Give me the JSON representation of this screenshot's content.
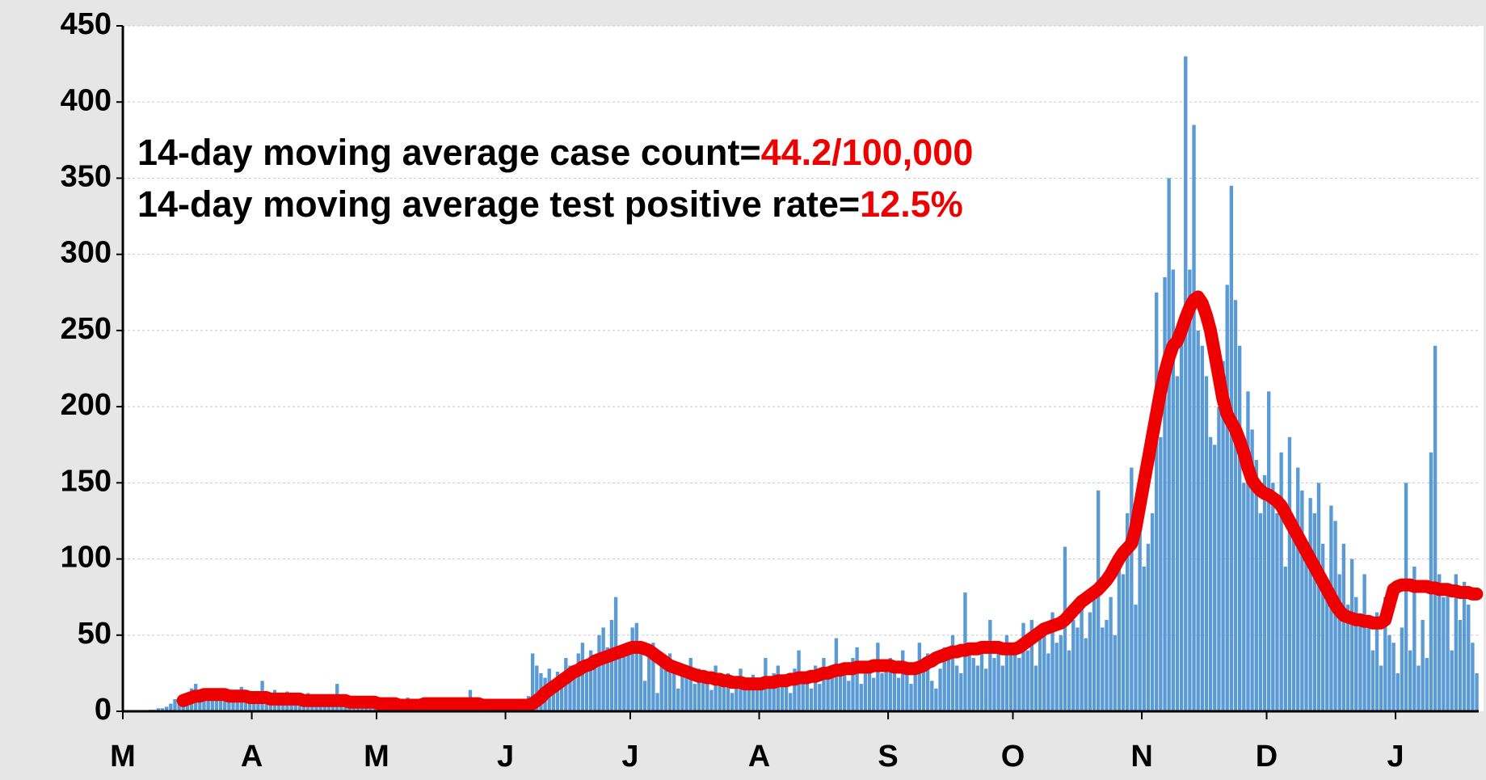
{
  "chart_data": {
    "type": "bar",
    "categories": [
      "M",
      null,
      null,
      null,
      null,
      null,
      null,
      null,
      null,
      null,
      null,
      null,
      null,
      null,
      null,
      null,
      null,
      null,
      null,
      null,
      null,
      null,
      null,
      null,
      null,
      null,
      null,
      null,
      null,
      null,
      null,
      "A",
      null,
      null,
      null,
      null,
      null,
      null,
      null,
      null,
      null,
      null,
      null,
      null,
      null,
      null,
      null,
      null,
      null,
      null,
      null,
      null,
      null,
      null,
      null,
      null,
      null,
      null,
      null,
      null,
      null,
      "M",
      null,
      null,
      null,
      null,
      null,
      null,
      null,
      null,
      null,
      null,
      null,
      null,
      null,
      null,
      null,
      null,
      null,
      null,
      null,
      null,
      null,
      null,
      null,
      null,
      null,
      null,
      null,
      null,
      null,
      null,
      "J",
      null,
      null,
      null,
      null,
      null,
      null,
      null,
      null,
      null,
      null,
      null,
      null,
      null,
      null,
      null,
      null,
      null,
      null,
      null,
      null,
      null,
      null,
      null,
      null,
      null,
      null,
      null,
      null,
      null,
      "J",
      null,
      null,
      null,
      null,
      null,
      null,
      null,
      null,
      null,
      null,
      null,
      null,
      null,
      null,
      null,
      null,
      null,
      null,
      null,
      null,
      null,
      null,
      null,
      null,
      null,
      null,
      null,
      null,
      null,
      null,
      "A",
      null,
      null,
      null,
      null,
      null,
      null,
      null,
      null,
      null,
      null,
      null,
      null,
      null,
      null,
      null,
      null,
      null,
      null,
      null,
      null,
      null,
      null,
      null,
      null,
      null,
      null,
      null,
      null,
      null,
      null,
      "S",
      null,
      null,
      null,
      null,
      null,
      null,
      null,
      null,
      null,
      null,
      null,
      null,
      null,
      null,
      null,
      null,
      null,
      null,
      null,
      null,
      null,
      null,
      null,
      null,
      null,
      null,
      null,
      null,
      null,
      "O",
      null,
      null,
      null,
      null,
      null,
      null,
      null,
      null,
      null,
      null,
      null,
      null,
      null,
      null,
      null,
      null,
      null,
      null,
      null,
      null,
      null,
      null,
      null,
      null,
      null,
      null,
      null,
      null,
      null,
      null,
      "N",
      null,
      null,
      null,
      null,
      null,
      null,
      null,
      null,
      null,
      null,
      null,
      null,
      null,
      null,
      null,
      null,
      null,
      null,
      null,
      null,
      null,
      null,
      null,
      null,
      null,
      null,
      null,
      null,
      null,
      "D",
      null,
      null,
      null,
      null,
      null,
      null,
      null,
      null,
      null,
      null,
      null,
      null,
      null,
      null,
      null,
      null,
      null,
      null,
      null,
      null,
      null,
      null,
      null,
      null,
      null,
      null,
      null,
      null,
      null,
      null,
      "J",
      null,
      null,
      null,
      null,
      null,
      null,
      null,
      null,
      null,
      null,
      null,
      null,
      null,
      null,
      null,
      null,
      null,
      null,
      null
    ],
    "series": [
      {
        "type": "bar",
        "color": "#5b9bd5",
        "values": [
          0,
          0,
          0,
          0,
          0,
          0,
          1,
          1,
          2,
          2,
          3,
          5,
          8,
          9,
          5,
          10,
          15,
          18,
          12,
          8,
          10,
          14,
          9,
          11,
          13,
          8,
          12,
          10,
          16,
          9,
          11,
          12,
          8,
          20,
          10,
          9,
          14,
          7,
          11,
          13,
          8,
          10,
          6,
          9,
          12,
          7,
          10,
          8,
          11,
          6,
          9,
          18,
          7,
          8,
          10,
          5,
          9,
          7,
          8,
          6,
          9,
          5,
          7,
          4,
          6,
          8,
          3,
          5,
          9,
          4,
          6,
          7,
          5,
          3,
          8,
          6,
          4,
          7,
          5,
          9,
          6,
          4,
          7,
          14,
          5,
          8,
          6,
          4,
          7,
          5,
          6,
          8,
          5,
          3,
          6,
          4,
          8,
          10,
          38,
          30,
          25,
          22,
          28,
          20,
          26,
          18,
          35,
          30,
          28,
          38,
          45,
          32,
          40,
          36,
          50,
          55,
          42,
          60,
          75,
          40,
          38,
          45,
          55,
          58,
          40,
          20,
          35,
          45,
          12,
          30,
          28,
          38,
          25,
          15,
          30,
          22,
          35,
          18,
          28,
          20,
          25,
          14,
          30,
          22,
          18,
          25,
          12,
          20,
          28,
          16,
          22,
          24,
          18,
          20,
          35,
          15,
          25,
          30,
          18,
          22,
          12,
          28,
          40,
          20,
          25,
          15,
          30,
          18,
          35,
          22,
          28,
          48,
          25,
          30,
          20,
          35,
          42,
          18,
          28,
          30,
          22,
          45,
          25,
          30,
          35,
          28,
          22,
          40,
          30,
          18,
          25,
          45,
          30,
          38,
          20,
          15,
          28,
          42,
          35,
          50,
          30,
          25,
          78,
          40,
          35,
          30,
          45,
          28,
          60,
          35,
          42,
          30,
          50,
          38,
          45,
          35,
          58,
          40,
          60,
          30,
          48,
          55,
          38,
          65,
          45,
          50,
          108,
          40,
          60,
          55,
          70,
          48,
          65,
          80,
          145,
          55,
          60,
          75,
          50,
          100,
          90,
          130,
          160,
          70,
          120,
          95,
          110,
          130,
          275,
          180,
          285,
          350,
          290,
          220,
          245,
          430,
          290,
          385,
          250,
          240,
          220,
          180,
          175,
          200,
          230,
          280,
          345,
          270,
          240,
          150,
          210,
          185,
          165,
          130,
          155,
          210,
          150,
          130,
          170,
          95,
          180,
          120,
          160,
          145,
          100,
          140,
          130,
          150,
          110,
          80,
          135,
          125,
          90,
          110,
          70,
          100,
          75,
          60,
          90,
          55,
          40,
          65,
          30,
          75,
          50,
          45,
          25,
          55,
          150,
          40,
          95,
          30,
          60,
          35,
          170,
          240,
          90,
          75,
          80,
          40,
          90,
          60,
          85,
          70,
          45,
          25
        ]
      },
      {
        "type": "line",
        "color": "#ee0000",
        "values": [
          null,
          null,
          null,
          null,
          null,
          null,
          null,
          null,
          null,
          null,
          null,
          null,
          null,
          null,
          7,
          8,
          9,
          10,
          10,
          11,
          11,
          11,
          11,
          11,
          11,
          10,
          10,
          10,
          10,
          10,
          9,
          9,
          9,
          9,
          9,
          8,
          8,
          8,
          8,
          8,
          8,
          8,
          8,
          7,
          7,
          7,
          7,
          7,
          7,
          7,
          7,
          7,
          7,
          7,
          6,
          6,
          6,
          6,
          6,
          6,
          6,
          5,
          5,
          5,
          5,
          5,
          4,
          4,
          4,
          4,
          4,
          4,
          5,
          5,
          5,
          5,
          5,
          5,
          5,
          5,
          5,
          5,
          5,
          5,
          5,
          5,
          4,
          4,
          4,
          4,
          4,
          4,
          4,
          4,
          4,
          4,
          4,
          4,
          5,
          7,
          9,
          12,
          14,
          16,
          18,
          20,
          22,
          24,
          26,
          27,
          29,
          30,
          31,
          33,
          34,
          35,
          36,
          37,
          38,
          39,
          40,
          41,
          42,
          42,
          42,
          41,
          40,
          38,
          36,
          34,
          32,
          30,
          29,
          28,
          27,
          26,
          25,
          24,
          23,
          23,
          22,
          22,
          21,
          21,
          20,
          20,
          19,
          19,
          19,
          18,
          18,
          18,
          18,
          18,
          19,
          19,
          19,
          20,
          20,
          20,
          21,
          21,
          22,
          22,
          22,
          23,
          23,
          24,
          25,
          25,
          26,
          27,
          27,
          28,
          28,
          28,
          29,
          29,
          29,
          29,
          30,
          30,
          30,
          30,
          30,
          29,
          29,
          29,
          28,
          28,
          28,
          29,
          30,
          32,
          33,
          35,
          36,
          37,
          38,
          39,
          39,
          40,
          40,
          41,
          41,
          41,
          42,
          42,
          42,
          42,
          42,
          41,
          41,
          41,
          41,
          42,
          44,
          46,
          48,
          50,
          52,
          54,
          55,
          56,
          57,
          58,
          60,
          63,
          66,
          69,
          72,
          74,
          76,
          78,
          80,
          83,
          86,
          90,
          95,
          100,
          104,
          107,
          110,
          120,
          135,
          150,
          165,
          180,
          195,
          210,
          222,
          232,
          240,
          243,
          250,
          258,
          265,
          270,
          272,
          268,
          260,
          250,
          235,
          220,
          205,
          195,
          190,
          185,
          178,
          170,
          160,
          152,
          148,
          145,
          143,
          142,
          140,
          138,
          135,
          130,
          125,
          120,
          115,
          110,
          105,
          100,
          95,
          90,
          85,
          80,
          75,
          70,
          66,
          63,
          62,
          61,
          60,
          60,
          59,
          59,
          58,
          58,
          58,
          60,
          70,
          80,
          82,
          83,
          83,
          83,
          82,
          82,
          82,
          82,
          81,
          81,
          80,
          80,
          80,
          79,
          79,
          78,
          78,
          78,
          77,
          77
        ]
      }
    ],
    "ylim": [
      0,
      450
    ],
    "yticks": [
      0,
      50,
      100,
      150,
      200,
      250,
      300,
      350,
      400,
      450
    ],
    "grid": true,
    "annotation_color": "#ee0000",
    "annotations": [
      {
        "text": "14-day moving average case count=",
        "value": "44.2/100,000"
      },
      {
        "text": "14-day moving average test positive rate=",
        "value": "12.5%"
      }
    ]
  }
}
